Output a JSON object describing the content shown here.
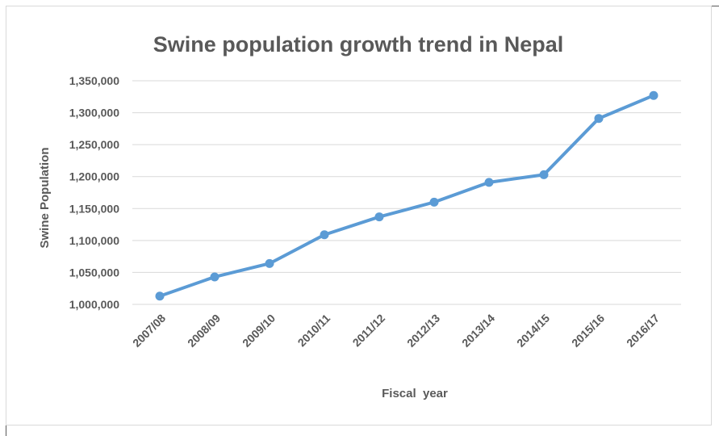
{
  "chart_data": {
    "type": "line",
    "title": "Swine population growth trend in Nepal",
    "xlabel": "Fiscal  year",
    "ylabel": "Swine Population",
    "categories": [
      "2007/08",
      "2008/09",
      "2009/10",
      "2010/11",
      "2011/12",
      "2012/13",
      "2013/14",
      "2014/15",
      "2015/16",
      "2016/17"
    ],
    "series": [
      {
        "values": [
          1013000,
          1043000,
          1064000,
          1109000,
          1137000,
          1160000,
          1191000,
          1203000,
          1291000,
          1327000
        ]
      }
    ],
    "ylim": [
      1000000,
      1350000
    ],
    "yticks": [
      1000000,
      1050000,
      1100000,
      1150000,
      1200000,
      1250000,
      1300000,
      1350000
    ],
    "ytick_labels": [
      "1,000,000",
      "1,050,000",
      "1,100,000",
      "1,150,000",
      "1,200,000",
      "1,250,000",
      "1,300,000",
      "1,350,000"
    ],
    "grid": true,
    "legend": "none",
    "line_color": "#5b9bd5",
    "grid_color": "#d9d9d9",
    "text_color": "#595959"
  }
}
